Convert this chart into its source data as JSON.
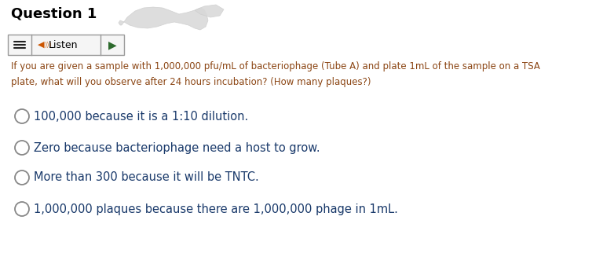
{
  "title": "Question 1",
  "title_fontsize": 13,
  "title_fontweight": "bold",
  "title_color": "#000000",
  "question_text_line1": "If you are given a sample with 1,000,000 pfu/mL of bacteriophage (Tube A) and plate 1mL of the sample on a TSA",
  "question_text_line2": "plate, what will you observe after 24 hours incubation? (How many plaques?)",
  "question_color": "#8B4513",
  "question_fontsize": 8.5,
  "options": [
    "100,000 because it is a 1:10 dilution.",
    "Zero because bacteriophage need a host to grow.",
    "More than 300 because it will be TNTC.",
    "1,000,000 plaques because there are 1,000,000 phage in 1mL."
  ],
  "option_color": "#1a3a6b",
  "option_fontsize": 10.5,
  "listen_label": "Listen",
  "background_color": "#ffffff",
  "bird_color": "#d8d8d8",
  "listen_box_color": "#f5f5f5",
  "listen_border_color": "#999999"
}
